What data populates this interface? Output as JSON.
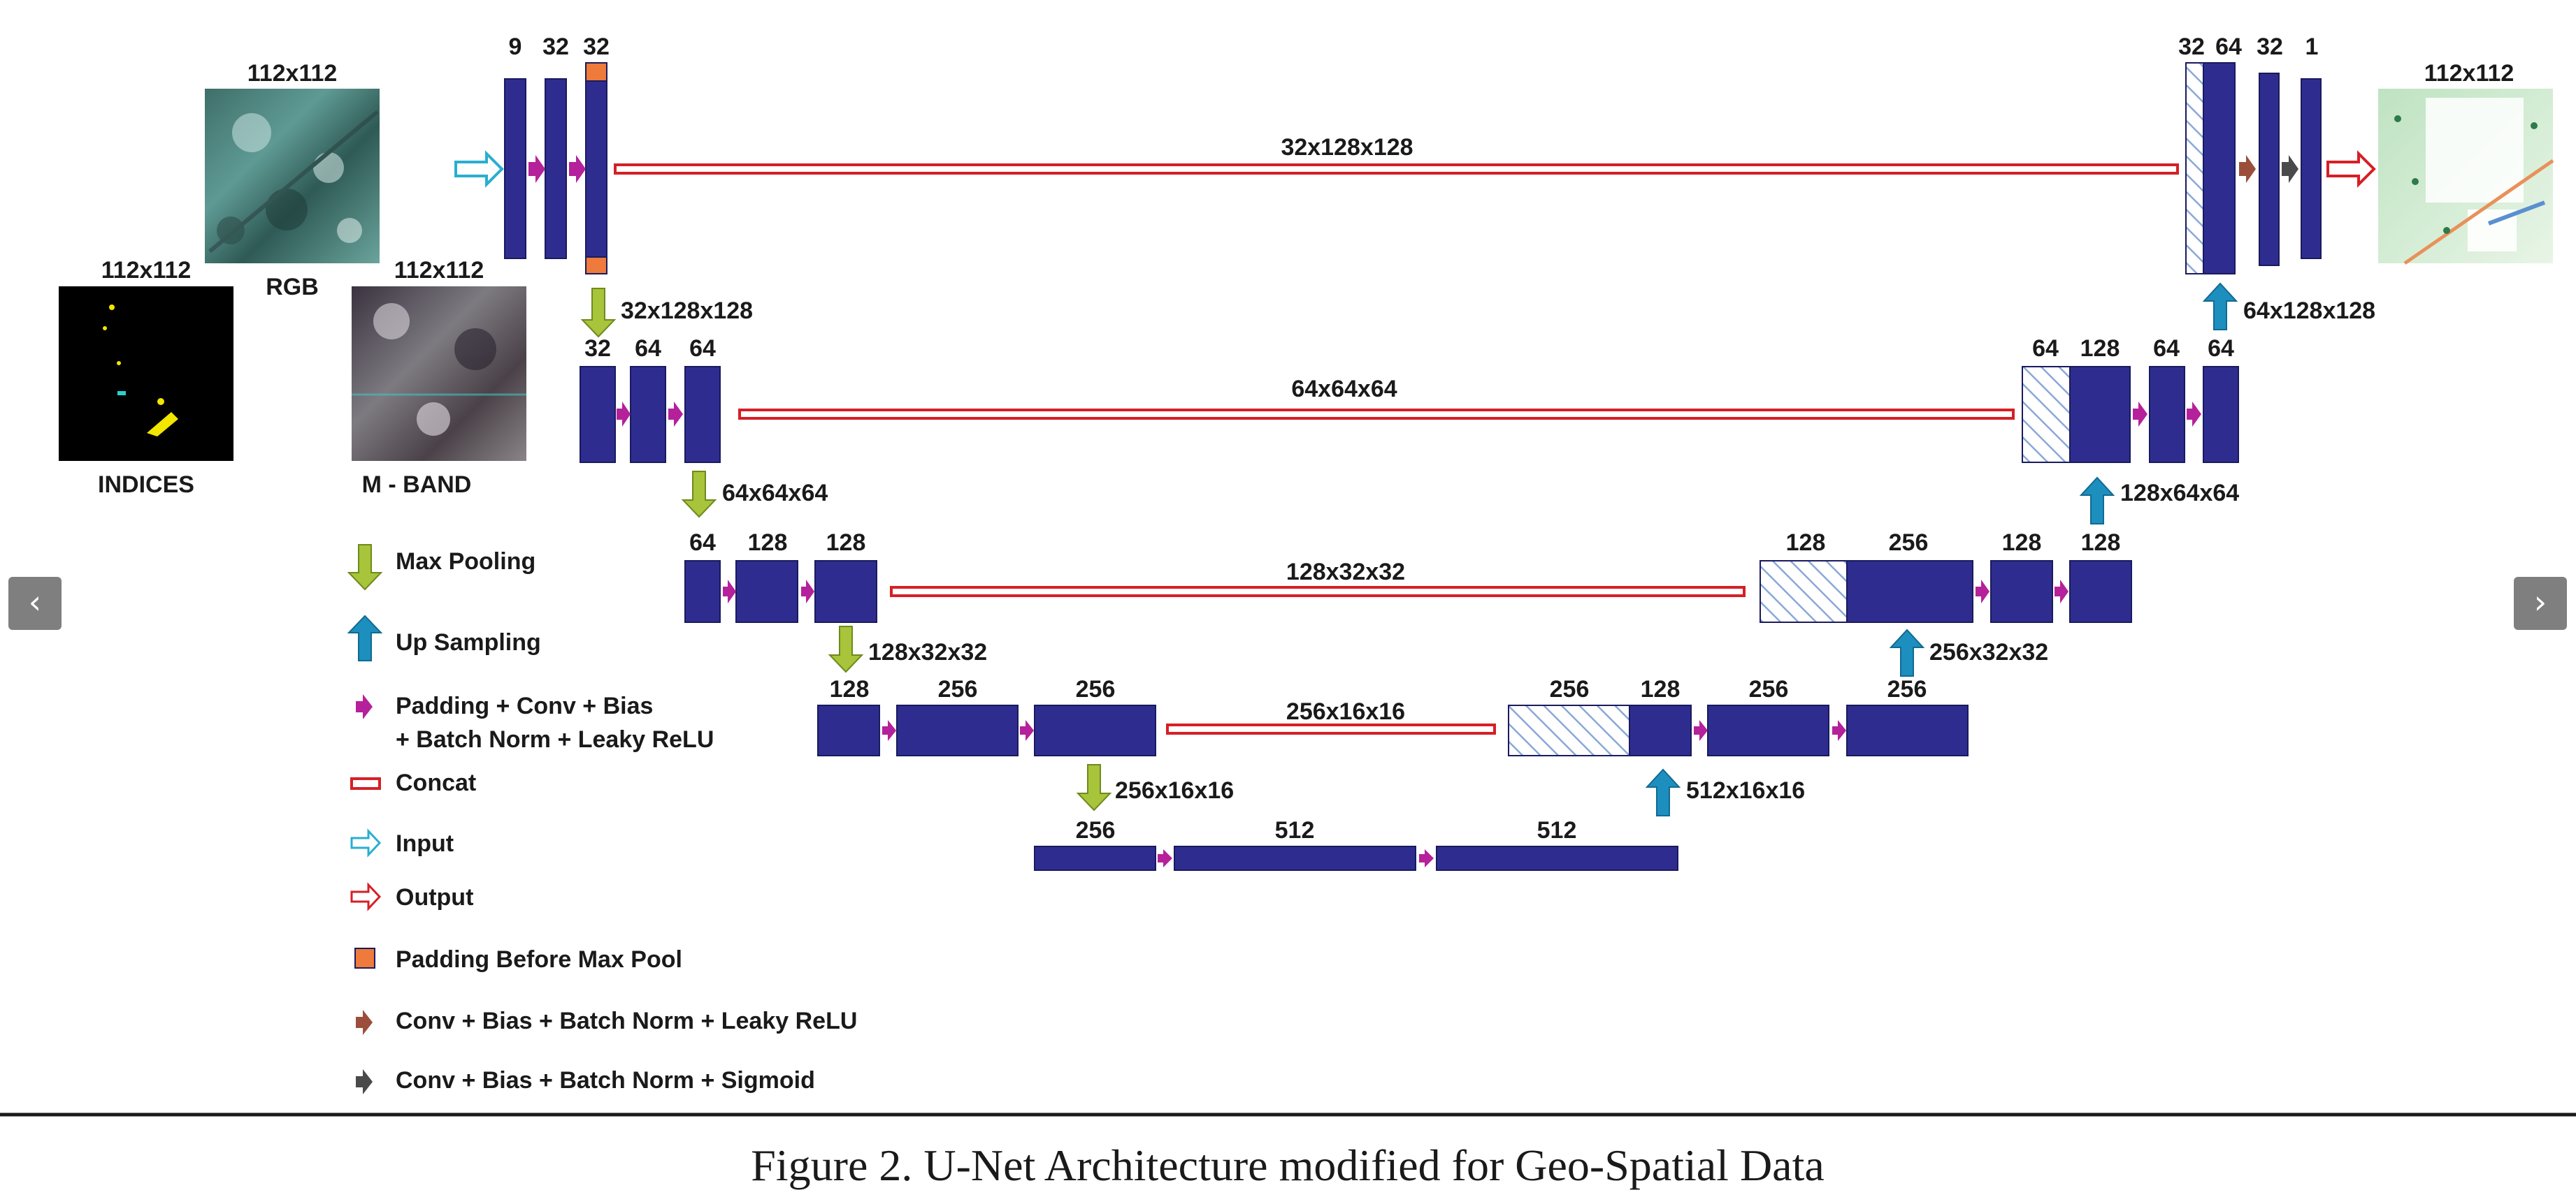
{
  "figure": {
    "caption": "Figure 2. U-Net Architecture modified for Geo-Spatial Data",
    "colors": {
      "block": "#2e2d8f",
      "block_border": "#1a1a5e",
      "arrow_conv": "#b5219a",
      "arrow_pool": "#a8c43a",
      "arrow_up": "#1c8fbf",
      "concat": "#d61f26",
      "input_arrow": "#2aaed0",
      "padding": "#ee7a3b",
      "conv_lrelu": "#9b4f3a",
      "conv_sigmoid": "#4a4a4a",
      "hatch": "#8aa8d8"
    }
  },
  "images": {
    "rgb": {
      "size": "112x112",
      "name": "RGB"
    },
    "indices": {
      "size": "112x112",
      "name": "INDICES"
    },
    "mband": {
      "size": "112x112",
      "name": "M - BAND"
    },
    "output": {
      "size": "112x112"
    }
  },
  "encoder": {
    "level1": {
      "channels": [
        "9",
        "32",
        "32"
      ],
      "down": "32x128x128"
    },
    "level2": {
      "channels": [
        "32",
        "64",
        "64"
      ],
      "down": "64x64x64"
    },
    "level3": {
      "channels": [
        "64",
        "128",
        "128"
      ],
      "down": "128x32x32"
    },
    "level4": {
      "channels": [
        "128",
        "256",
        "256"
      ],
      "down": "256x16x16"
    },
    "bottleneck": {
      "channels": [
        "256",
        "512",
        "512"
      ]
    }
  },
  "concat": {
    "level1": "32x128x128",
    "level2": "64x64x64",
    "level3": "128x32x32",
    "level4": "256x16x16"
  },
  "decoder": {
    "level4": {
      "channels": [
        "256",
        "128",
        "256",
        "256"
      ],
      "up": "512x16x16"
    },
    "level3": {
      "channels": [
        "128",
        "256",
        "128",
        "128"
      ],
      "up": "256x32x32"
    },
    "level2": {
      "channels": [
        "64",
        "128",
        "64",
        "64"
      ],
      "up": "128x64x64"
    },
    "level1": {
      "channels": [
        "32",
        "64",
        "32",
        "1"
      ],
      "up": "64x128x128"
    }
  },
  "legend": {
    "max_pooling": "Max Pooling",
    "up_sampling": "Up Sampling",
    "conv_line1": "Padding + Conv + Bias",
    "conv_line2": "+ Batch Norm + Leaky ReLU",
    "concat": "Concat",
    "input": "Input",
    "output": "Output",
    "padding": "Padding Before Max Pool",
    "conv_lrelu": "Conv + Bias + Batch Norm + Leaky ReLU",
    "conv_sigmoid": "Conv + Bias + Batch Norm + Sigmoid"
  },
  "nav": {
    "prev": "‹",
    "next": "›"
  }
}
